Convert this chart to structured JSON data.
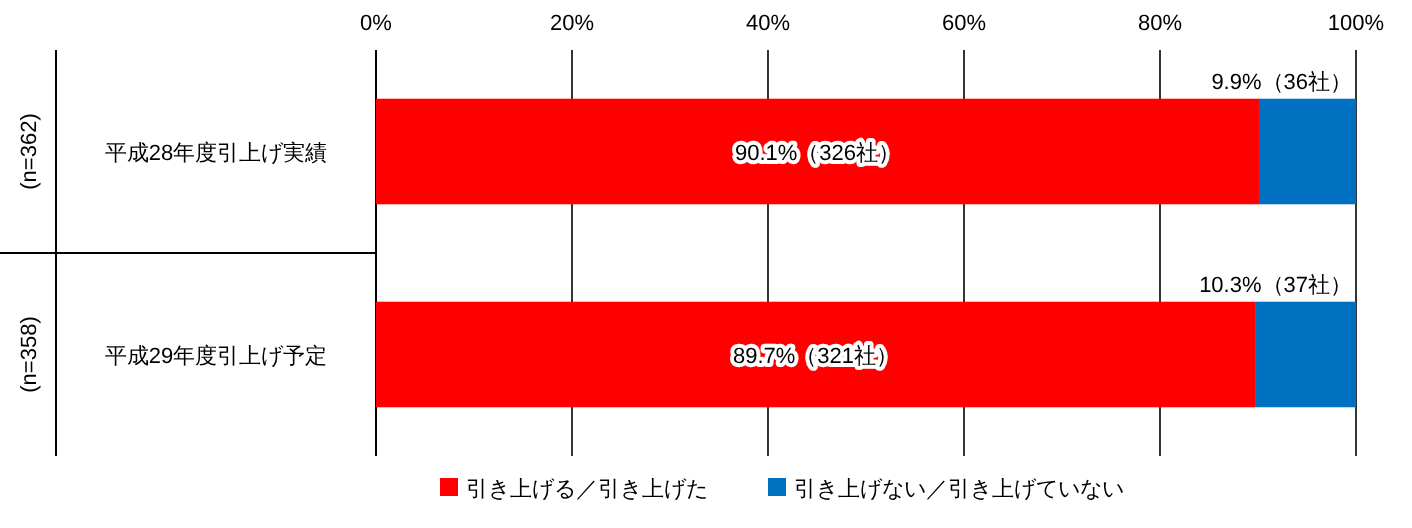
{
  "chart_data": {
    "type": "bar",
    "orientation": "horizontal",
    "stacked": true,
    "categories": [
      "平成28年度引上げ実績",
      "平成29年度引上げ予定"
    ],
    "annotations": [
      "(n=362)",
      "(n=358)"
    ],
    "series": [
      {
        "name": "引き上げる／引き上げた",
        "color": "#ff0000",
        "values": [
          90.1,
          89.7
        ],
        "value_labels": [
          "90.1%（326社）",
          "89.7%（321社）"
        ]
      },
      {
        "name": "引き上げない／引き上げていない",
        "color": "#0070c0",
        "values": [
          9.9,
          10.3
        ],
        "value_labels": [
          "9.9%（36社）",
          "10.3%（37社）"
        ]
      }
    ],
    "xlim": [
      0,
      100
    ],
    "xticks": [
      {
        "value": 0,
        "label": "0%"
      },
      {
        "value": 20,
        "label": "20%"
      },
      {
        "value": 40,
        "label": "40%"
      },
      {
        "value": 60,
        "label": "60%"
      },
      {
        "value": 80,
        "label": "80%"
      },
      {
        "value": 100,
        "label": "100%"
      }
    ],
    "grid": "x",
    "legend": "bottom"
  }
}
